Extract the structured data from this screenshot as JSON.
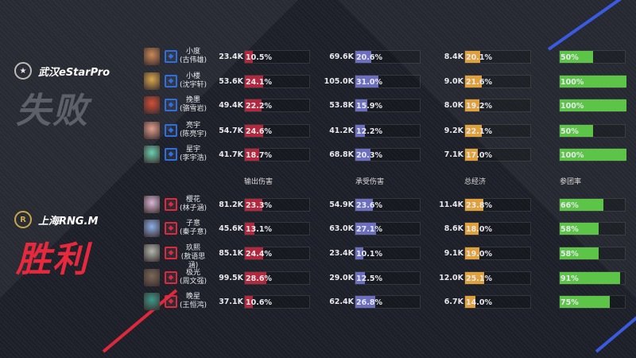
{
  "colors": {
    "damage": "#b3283c",
    "taken": "#6c6fc0",
    "gold": "#e0a03a",
    "participation": "#5cc548",
    "lose": "#5d6068",
    "win": "#e8283c"
  },
  "teams": [
    {
      "name": "武汉eStarPro",
      "logo_icon": "estar-logo",
      "result": "失败",
      "role_color": "#2f6ee0",
      "players": [
        {
          "name": "小度",
          "real": "(古伟雄)",
          "dmg": "23.4K",
          "dmg_pct": 10.5,
          "taken": "69.6K",
          "taken_pct": 20.6,
          "gold": "8.4K",
          "gold_pct": 20.1,
          "part": 50
        },
        {
          "name": "小楼",
          "real": "(沈宇轩)",
          "dmg": "53.6K",
          "dmg_pct": 24.1,
          "taken": "105.0K",
          "taken_pct": 31.0,
          "gold": "9.0K",
          "gold_pct": 21.6,
          "part": 100
        },
        {
          "name": "挽墨",
          "real": "(骆雪岩)",
          "dmg": "49.4K",
          "dmg_pct": 22.2,
          "taken": "53.8K",
          "taken_pct": 15.9,
          "gold": "8.0K",
          "gold_pct": 19.2,
          "part": 100
        },
        {
          "name": "亮宇",
          "real": "(陈亮宇)",
          "dmg": "54.7K",
          "dmg_pct": 24.6,
          "taken": "41.2K",
          "taken_pct": 12.2,
          "gold": "9.2K",
          "gold_pct": 22.1,
          "part": 50
        },
        {
          "name": "星宇",
          "real": "(李宇浩)",
          "dmg": "41.7K",
          "dmg_pct": 18.7,
          "taken": "68.8K",
          "taken_pct": 20.3,
          "gold": "7.1K",
          "gold_pct": 17.0,
          "part": 100
        }
      ]
    },
    {
      "name": "上海RNG.M",
      "logo_icon": "rng-logo",
      "result": "胜利",
      "role_color": "#e0283c",
      "players": [
        {
          "name": "樱花",
          "real": "(林子涵)",
          "dmg": "81.2K",
          "dmg_pct": 23.3,
          "taken": "54.9K",
          "taken_pct": 23.6,
          "gold": "11.4K",
          "gold_pct": 23.8,
          "part": 66
        },
        {
          "name": "子意",
          "real": "(秦子意)",
          "dmg": "45.6K",
          "dmg_pct": 13.1,
          "taken": "63.0K",
          "taken_pct": 27.1,
          "gold": "8.6K",
          "gold_pct": 18.0,
          "part": 58
        },
        {
          "name": "玖熙",
          "real": "(敖语思涵)",
          "dmg": "85.1K",
          "dmg_pct": 24.4,
          "taken": "23.4K",
          "taken_pct": 10.1,
          "gold": "9.1K",
          "gold_pct": 19.0,
          "part": 58
        },
        {
          "name": "极光",
          "real": "(周文强)",
          "dmg": "99.5K",
          "dmg_pct": 28.6,
          "taken": "29.0K",
          "taken_pct": 12.5,
          "gold": "12.0K",
          "gold_pct": 25.1,
          "part": 91
        },
        {
          "name": "晚星",
          "real": "(王恒鸿)",
          "dmg": "37.1K",
          "dmg_pct": 10.6,
          "taken": "62.4K",
          "taken_pct": 26.8,
          "gold": "6.7K",
          "gold_pct": 14.0,
          "part": 75
        }
      ]
    }
  ],
  "headers": {
    "damage": "输出伤害",
    "taken": "承受伤害",
    "gold": "总经济",
    "participation": "参团率"
  }
}
